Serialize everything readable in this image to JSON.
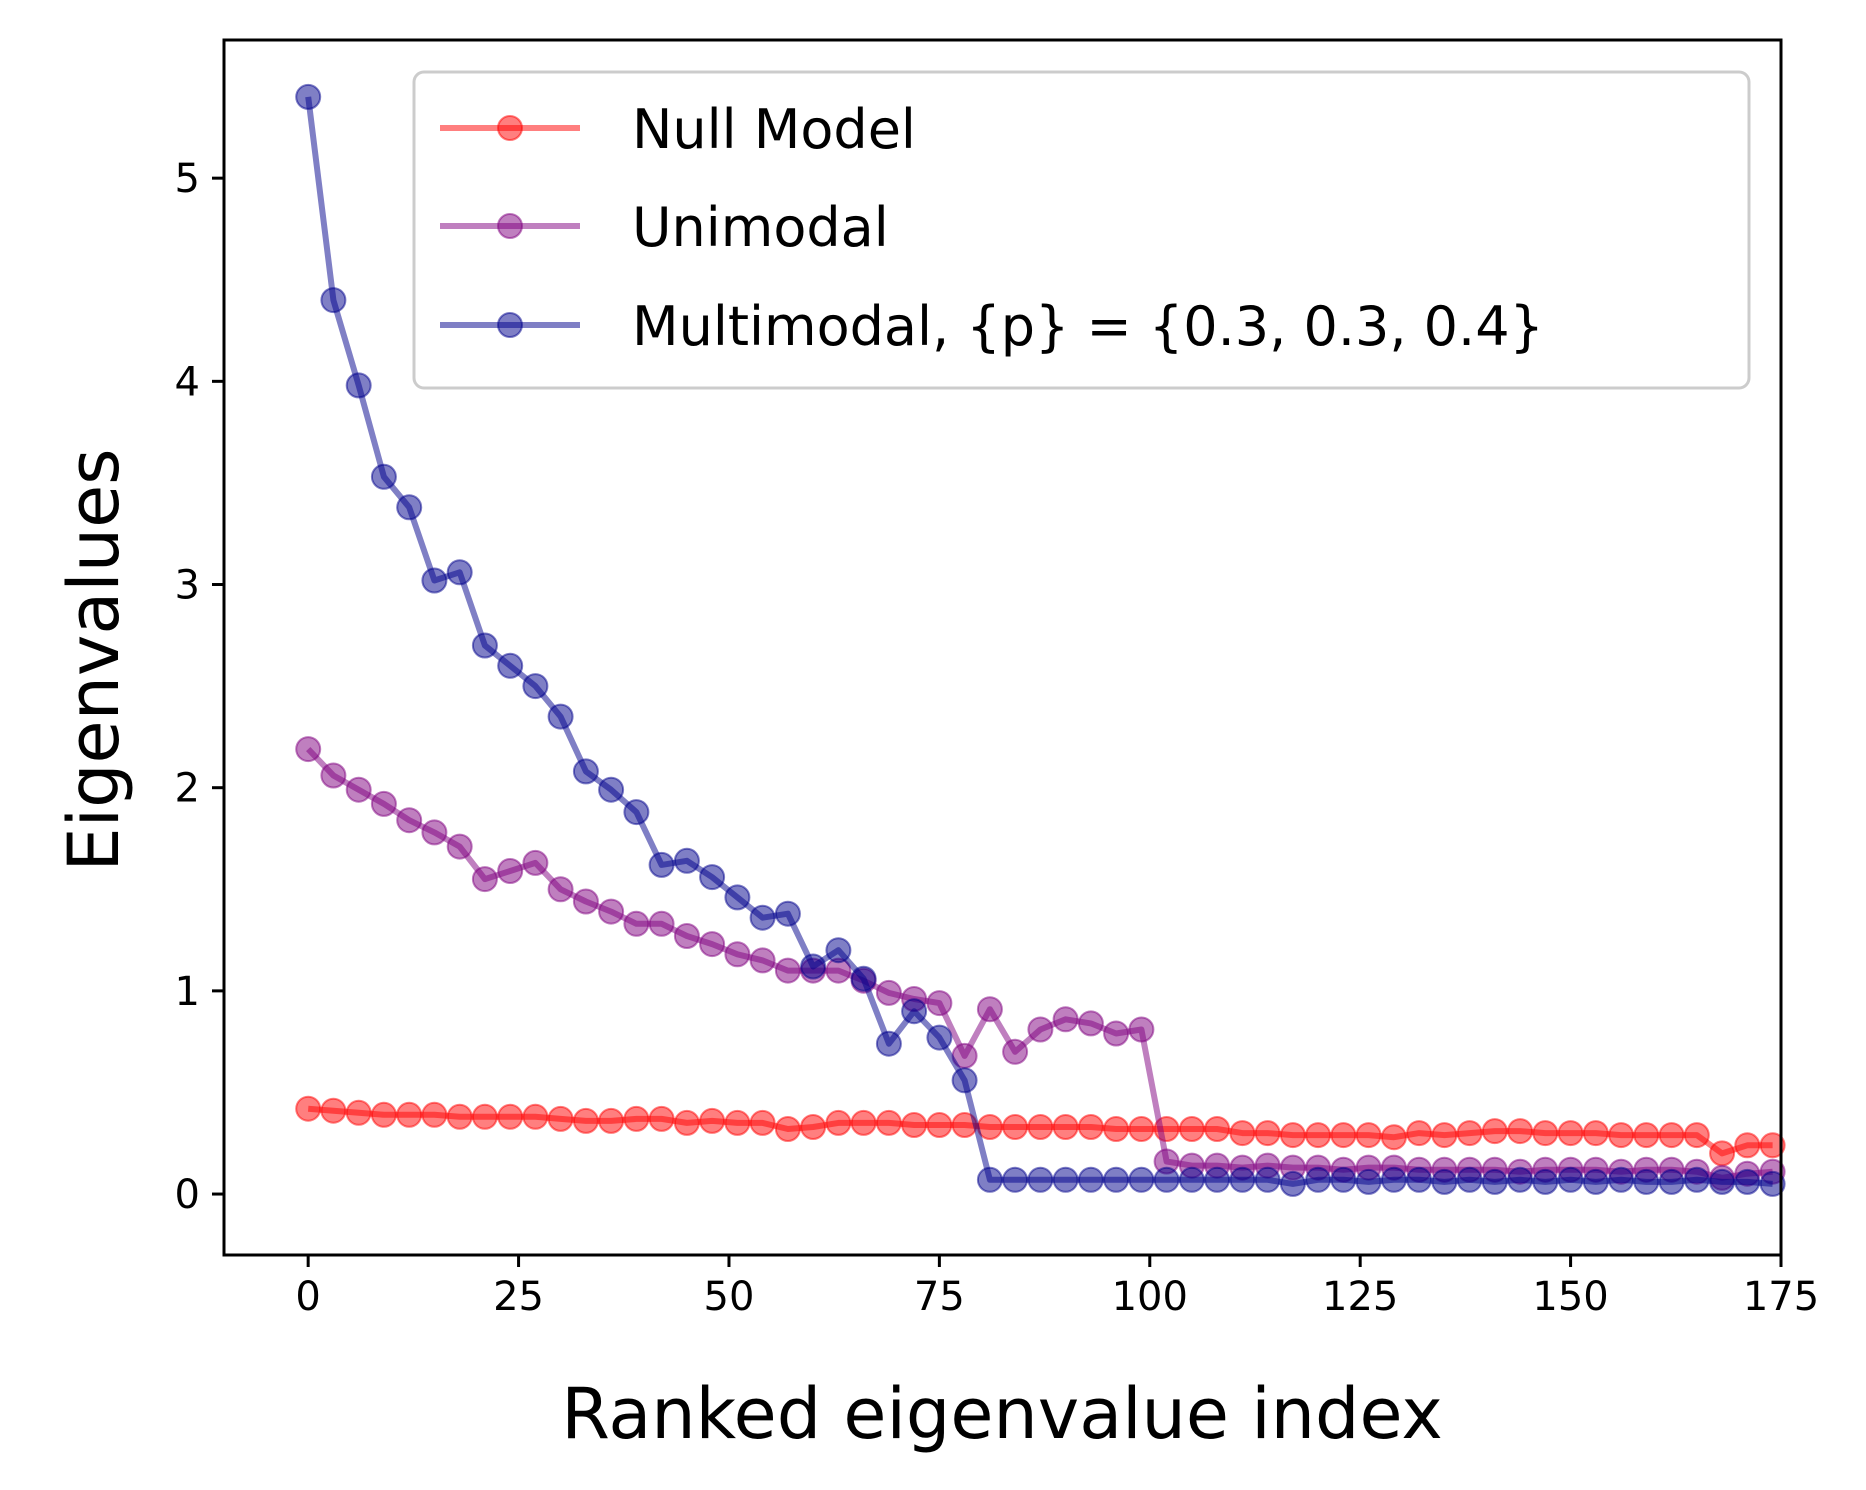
{
  "chart_data": {
    "type": "line",
    "xlabel": "Ranked eigenvalue index",
    "ylabel": "Eigenvalues",
    "xlim": [
      -10,
      175
    ],
    "ylim": [
      -0.3,
      5.68
    ],
    "xticks": [
      0,
      25,
      50,
      75,
      100,
      125,
      150,
      175
    ],
    "yticks": [
      0,
      1,
      2,
      3,
      4,
      5
    ],
    "grid": false,
    "legend_position": "top-right",
    "series": [
      {
        "name": "Null Model",
        "color": "#ff0000",
        "x": [
          0,
          3,
          6,
          9,
          12,
          15,
          18,
          21,
          24,
          27,
          30,
          33,
          36,
          39,
          42,
          45,
          48,
          51,
          54,
          57,
          60,
          63,
          66,
          69,
          72,
          75,
          78,
          81,
          84,
          87,
          90,
          93,
          96,
          99,
          102,
          105,
          108,
          111,
          114,
          117,
          120,
          123,
          126,
          129,
          132,
          135,
          138,
          141,
          144,
          147,
          150,
          153,
          156,
          159,
          162,
          165,
          168,
          171,
          174
        ],
        "values": [
          0.42,
          0.41,
          0.4,
          0.39,
          0.39,
          0.39,
          0.38,
          0.38,
          0.38,
          0.38,
          0.37,
          0.36,
          0.36,
          0.37,
          0.37,
          0.35,
          0.36,
          0.35,
          0.35,
          0.32,
          0.33,
          0.35,
          0.35,
          0.35,
          0.34,
          0.34,
          0.34,
          0.33,
          0.33,
          0.33,
          0.33,
          0.33,
          0.32,
          0.32,
          0.32,
          0.32,
          0.32,
          0.3,
          0.3,
          0.29,
          0.29,
          0.29,
          0.29,
          0.28,
          0.3,
          0.29,
          0.3,
          0.31,
          0.31,
          0.3,
          0.3,
          0.3,
          0.29,
          0.29,
          0.29,
          0.29,
          0.2,
          0.24,
          0.24
        ]
      },
      {
        "name": "Unimodal",
        "color": "#800080",
        "x": [
          0,
          3,
          6,
          9,
          12,
          15,
          18,
          21,
          24,
          27,
          30,
          33,
          36,
          39,
          42,
          45,
          48,
          51,
          54,
          57,
          60,
          63,
          66,
          69,
          72,
          75,
          78,
          81,
          84,
          87,
          90,
          93,
          96,
          99,
          102,
          105,
          108,
          111,
          114,
          117,
          120,
          123,
          126,
          129,
          132,
          135,
          138,
          141,
          144,
          147,
          150,
          153,
          156,
          159,
          162,
          165,
          168,
          171,
          174
        ],
        "values": [
          2.19,
          2.06,
          1.99,
          1.92,
          1.84,
          1.78,
          1.71,
          1.55,
          1.59,
          1.63,
          1.5,
          1.44,
          1.39,
          1.33,
          1.33,
          1.27,
          1.23,
          1.18,
          1.15,
          1.1,
          1.1,
          1.1,
          1.05,
          0.99,
          0.96,
          0.94,
          0.68,
          0.91,
          0.7,
          0.81,
          0.86,
          0.84,
          0.79,
          0.81,
          0.16,
          0.14,
          0.14,
          0.13,
          0.14,
          0.13,
          0.13,
          0.12,
          0.13,
          0.13,
          0.12,
          0.12,
          0.12,
          0.12,
          0.11,
          0.12,
          0.12,
          0.12,
          0.11,
          0.12,
          0.12,
          0.11,
          0.08,
          0.1,
          0.11
        ]
      },
      {
        "name": "Multimodal, {p} = {0.3, 0.3, 0.4}",
        "color": "#00008b",
        "x": [
          0,
          3,
          6,
          9,
          12,
          15,
          18,
          21,
          24,
          27,
          30,
          33,
          36,
          39,
          42,
          45,
          48,
          51,
          54,
          57,
          60,
          63,
          66,
          69,
          72,
          75,
          78,
          81,
          84,
          87,
          90,
          93,
          96,
          99,
          102,
          105,
          108,
          111,
          114,
          117,
          120,
          123,
          126,
          129,
          132,
          135,
          138,
          141,
          144,
          147,
          150,
          153,
          156,
          159,
          162,
          165,
          168,
          171,
          174
        ],
        "values": [
          5.4,
          4.4,
          3.98,
          3.53,
          3.38,
          3.02,
          3.06,
          2.7,
          2.6,
          2.5,
          2.35,
          2.08,
          1.99,
          1.88,
          1.62,
          1.64,
          1.56,
          1.46,
          1.36,
          1.38,
          1.12,
          1.2,
          1.06,
          0.74,
          0.9,
          0.77,
          0.56,
          0.07,
          0.07,
          0.07,
          0.07,
          0.07,
          0.07,
          0.07,
          0.07,
          0.07,
          0.07,
          0.07,
          0.07,
          0.05,
          0.07,
          0.07,
          0.06,
          0.07,
          0.07,
          0.06,
          0.07,
          0.06,
          0.07,
          0.06,
          0.07,
          0.06,
          0.07,
          0.06,
          0.06,
          0.07,
          0.06,
          0.06,
          0.05
        ]
      }
    ]
  }
}
